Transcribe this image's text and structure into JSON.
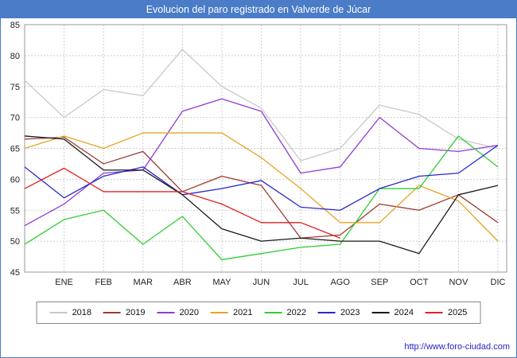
{
  "header": {
    "title": "Evolucion del paro registrado en Valverde de Júcar"
  },
  "footer": {
    "url": "http://www.foro-ciudad.com"
  },
  "chart_data": {
    "type": "line",
    "title": "Evolucion del paro registrado en Valverde de Júcar",
    "xlabel": "",
    "ylabel": "",
    "ylim": [
      45,
      85
    ],
    "y_ticks": [
      45,
      50,
      55,
      60,
      65,
      70,
      75,
      80,
      85
    ],
    "grid": true,
    "legend_position": "bottom",
    "x_labels": [
      "ENE",
      "FEB",
      "MAR",
      "ABR",
      "MAY",
      "JUN",
      "JUL",
      "AGO",
      "SEP",
      "OCT",
      "NOV",
      "DIC"
    ],
    "points_note": "13 points per full series: value at left plot edge followed by one value per month gridline ENE..DIC; 2025 series ends at AGO",
    "series": [
      {
        "name": "2018",
        "color": "#c9c9c9",
        "values": [
          76,
          70,
          74.5,
          73.5,
          81,
          75,
          71.5,
          63,
          65,
          72,
          70.5,
          66.5,
          65
        ]
      },
      {
        "name": "2019",
        "color": "#9e3a32",
        "values": [
          66.5,
          66.8,
          62.5,
          64.5,
          58,
          60.5,
          59,
          50.5,
          51,
          56,
          55,
          57.5,
          53
        ]
      },
      {
        "name": "2020",
        "color": "#8f3bd4",
        "values": [
          52.5,
          56,
          61,
          61.5,
          71,
          73,
          71,
          61,
          62,
          70,
          65,
          64.5,
          65.5
        ]
      },
      {
        "name": "2021",
        "color": "#e8a323",
        "values": [
          65,
          67,
          65,
          67.5,
          67.5,
          67.5,
          63.5,
          58.5,
          53,
          53,
          59,
          56.5,
          50
        ]
      },
      {
        "name": "2022",
        "color": "#33cc33",
        "values": [
          49.5,
          53.5,
          55,
          49.5,
          54,
          47,
          48,
          49,
          49.5,
          58.5,
          58.5,
          67,
          62
        ]
      },
      {
        "name": "2023",
        "color": "#2828cc",
        "values": [
          62,
          57,
          60.5,
          62,
          57.5,
          58.5,
          59.8,
          55.5,
          55,
          58.5,
          60.5,
          61,
          65.5
        ]
      },
      {
        "name": "2024",
        "color": "#1a1a1a",
        "values": [
          67,
          66.5,
          61.5,
          61.5,
          57.5,
          52,
          50,
          50.5,
          50,
          50,
          48,
          57.5,
          59
        ]
      },
      {
        "name": "2025",
        "color": "#e02222",
        "values": [
          58.5,
          61.8,
          58,
          58,
          58,
          56,
          53,
          53,
          50.5
        ]
      }
    ]
  }
}
